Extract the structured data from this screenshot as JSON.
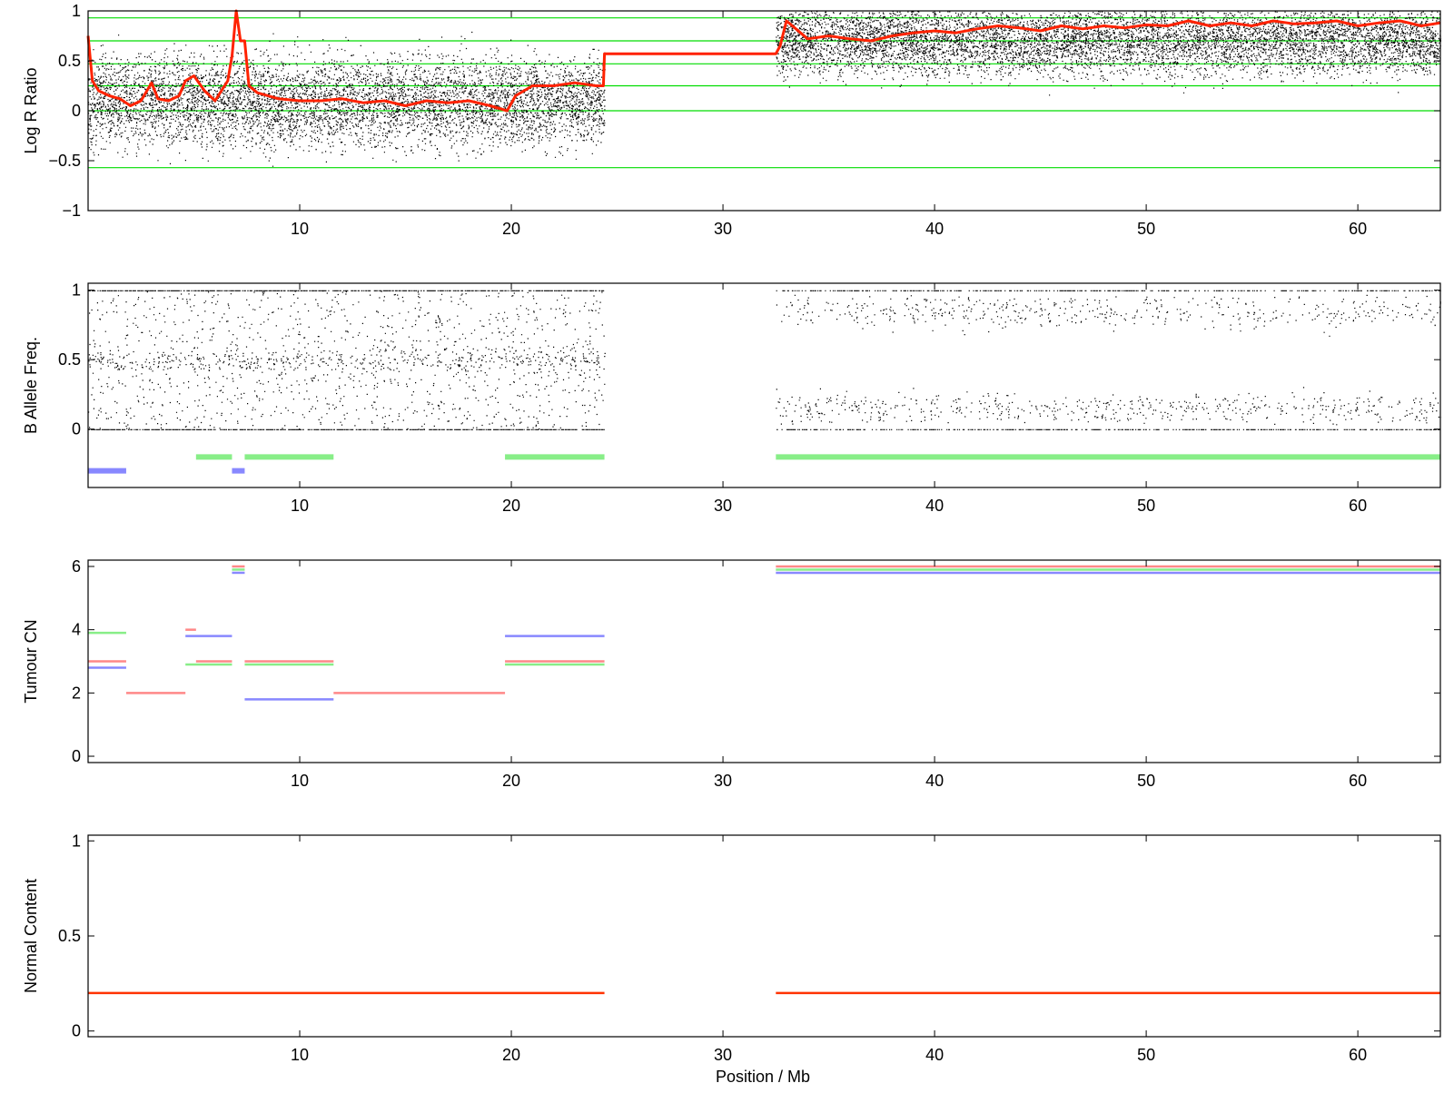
{
  "figure": {
    "xlabel": "Position / Mb"
  },
  "chart_data": [
    {
      "type": "scatter",
      "id": "lrr",
      "ylabel": "Log R Ratio",
      "xlim": [
        0,
        63.9
      ],
      "ylim": [
        -1,
        1
      ],
      "xticks": [
        10,
        20,
        30,
        40,
        50,
        60
      ],
      "yticks": [
        -1,
        -0.5,
        0,
        0.5,
        1
      ],
      "ytick_labels": [
        "−1",
        "−0.5",
        "0",
        "0.5",
        "1"
      ],
      "reference_lines": {
        "color": "#00dd00",
        "values": [
          0.93,
          0.7,
          0.47,
          0.25,
          0.0,
          -0.57
        ]
      },
      "points": {
        "color": "#000000",
        "regions": [
          {
            "x": [
              0,
              24.4
            ],
            "y_center": 0.1,
            "y_spread": 0.45
          },
          {
            "x": [
              32.5,
              63.9
            ],
            "y_center": 0.72,
            "y_spread": 0.35
          }
        ]
      },
      "series": [
        {
          "color": "#ff2200",
          "x": [
            0,
            0.2,
            0.5,
            1,
            1.5,
            2,
            2.5,
            3,
            3.3,
            3.8,
            4.3,
            4.6,
            5,
            5.5,
            6,
            6.3,
            6.6,
            6.8,
            7.0,
            7.2,
            7.4,
            7.6,
            8,
            9,
            10,
            11,
            12,
            13,
            14,
            15,
            16,
            17,
            18,
            19,
            19.8,
            20.2,
            21,
            22,
            23,
            24,
            24.35,
            24.4,
            32.5,
            32.7,
            33.0,
            34,
            35,
            36,
            37,
            38,
            39,
            40,
            41,
            42,
            43,
            44,
            45,
            46,
            47,
            48,
            49,
            50,
            51,
            52,
            53,
            54,
            55,
            56,
            57,
            58,
            59,
            60,
            61,
            62,
            63,
            63.9
          ],
          "y": [
            0.75,
            0.3,
            0.2,
            0.15,
            0.12,
            0.05,
            0.1,
            0.28,
            0.12,
            0.1,
            0.15,
            0.3,
            0.35,
            0.2,
            0.1,
            0.2,
            0.3,
            0.55,
            1.0,
            0.7,
            0.7,
            0.25,
            0.18,
            0.12,
            0.1,
            0.1,
            0.12,
            0.08,
            0.1,
            0.05,
            0.1,
            0.08,
            0.1,
            0.05,
            0.0,
            0.15,
            0.25,
            0.25,
            0.28,
            0.25,
            0.25,
            0.57,
            0.57,
            0.65,
            0.9,
            0.72,
            0.75,
            0.72,
            0.7,
            0.75,
            0.78,
            0.8,
            0.78,
            0.82,
            0.85,
            0.83,
            0.8,
            0.85,
            0.82,
            0.85,
            0.83,
            0.86,
            0.85,
            0.9,
            0.85,
            0.88,
            0.85,
            0.9,
            0.87,
            0.88,
            0.9,
            0.85,
            0.88,
            0.9,
            0.85,
            0.88
          ]
        }
      ]
    },
    {
      "type": "scatter",
      "id": "baf",
      "ylabel": "B Allele Freq.",
      "xlim": [
        0,
        63.9
      ],
      "ylim": [
        -0.42,
        1.05
      ],
      "xticks": [
        10,
        20,
        30,
        40,
        50,
        60
      ],
      "yticks": [
        0,
        0.5,
        1
      ],
      "ytick_labels": [
        "0",
        "0.5",
        "1"
      ],
      "points": {
        "color": "#000000",
        "regions": [
          {
            "x": [
              0,
              24.4
            ]
          },
          {
            "x": [
              32.5,
              63.9
            ]
          }
        ]
      },
      "segments": [
        {
          "x": [
            0,
            1.8
          ],
          "y": -0.3,
          "color": "#8888ff"
        },
        {
          "x": [
            6.8,
            7.4
          ],
          "y": -0.3,
          "color": "#8888ff"
        },
        {
          "x": [
            5.1,
            6.8
          ],
          "y": -0.2,
          "color": "#88ee88"
        },
        {
          "x": [
            7.4,
            11.6
          ],
          "y": -0.2,
          "color": "#88ee88"
        },
        {
          "x": [
            19.7,
            24.4
          ],
          "y": -0.2,
          "color": "#88ee88"
        },
        {
          "x": [
            32.5,
            63.9
          ],
          "y": -0.2,
          "color": "#88ee88"
        }
      ]
    },
    {
      "type": "line",
      "id": "tumour-cn",
      "ylabel": "Tumour CN",
      "xlim": [
        0,
        63.9
      ],
      "ylim": [
        -0.2,
        6.2
      ],
      "xticks": [
        10,
        20,
        30,
        40,
        50,
        60
      ],
      "yticks": [
        0,
        2,
        4,
        6
      ],
      "ytick_labels": [
        "0",
        "2",
        "4",
        "6"
      ],
      "segments": [
        {
          "x": [
            0,
            1.8
          ],
          "y": 3.9,
          "color": "#88ee88"
        },
        {
          "x": [
            0,
            1.8
          ],
          "y": 3.0,
          "color": "#ff8888"
        },
        {
          "x": [
            0,
            1.8
          ],
          "y": 2.8,
          "color": "#8888ff"
        },
        {
          "x": [
            1.8,
            4.6
          ],
          "y": 2.0,
          "color": "#ff8888"
        },
        {
          "x": [
            4.6,
            5.1
          ],
          "y": 4.0,
          "color": "#ff8888"
        },
        {
          "x": [
            4.6,
            6.8
          ],
          "y": 3.8,
          "color": "#8888ff"
        },
        {
          "x": [
            5.1,
            6.8
          ],
          "y": 3.0,
          "color": "#ff8888"
        },
        {
          "x": [
            4.6,
            6.8
          ],
          "y": 2.9,
          "color": "#88ee88"
        },
        {
          "x": [
            6.8,
            7.4
          ],
          "y": 6.0,
          "color": "#ff8888"
        },
        {
          "x": [
            6.8,
            7.4
          ],
          "y": 5.9,
          "color": "#88ee88"
        },
        {
          "x": [
            6.8,
            7.4
          ],
          "y": 5.8,
          "color": "#8888ff"
        },
        {
          "x": [
            7.4,
            11.6
          ],
          "y": 3.0,
          "color": "#ff8888"
        },
        {
          "x": [
            7.4,
            11.6
          ],
          "y": 2.9,
          "color": "#88ee88"
        },
        {
          "x": [
            7.4,
            11.6
          ],
          "y": 1.8,
          "color": "#8888ff"
        },
        {
          "x": [
            11.6,
            19.7
          ],
          "y": 2.0,
          "color": "#ff8888"
        },
        {
          "x": [
            19.7,
            24.4
          ],
          "y": 3.8,
          "color": "#8888ff"
        },
        {
          "x": [
            19.7,
            24.4
          ],
          "y": 3.0,
          "color": "#ff8888"
        },
        {
          "x": [
            19.7,
            24.4
          ],
          "y": 2.9,
          "color": "#88ee88"
        },
        {
          "x": [
            32.5,
            63.9
          ],
          "y": 6.0,
          "color": "#ff8888"
        },
        {
          "x": [
            32.5,
            63.9
          ],
          "y": 5.9,
          "color": "#88ee88"
        },
        {
          "x": [
            32.5,
            63.9
          ],
          "y": 5.8,
          "color": "#8888ff"
        }
      ]
    },
    {
      "type": "line",
      "id": "normal-content",
      "ylabel": "Normal Content",
      "xlim": [
        0,
        63.9
      ],
      "ylim": [
        -0.03,
        1.03
      ],
      "xticks": [
        10,
        20,
        30,
        40,
        50,
        60
      ],
      "yticks": [
        0,
        0.5,
        1
      ],
      "ytick_labels": [
        "0",
        "0.5",
        "1"
      ],
      "segments": [
        {
          "x": [
            0,
            24.4
          ],
          "y": 0.2,
          "color": "#ff3300"
        },
        {
          "x": [
            32.5,
            63.9
          ],
          "y": 0.2,
          "color": "#ff3300"
        }
      ]
    }
  ]
}
